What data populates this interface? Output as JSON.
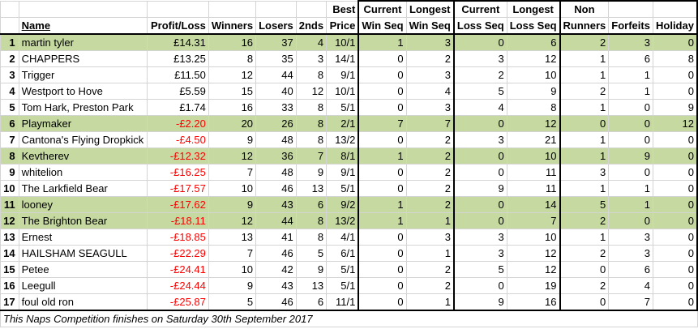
{
  "headers": {
    "name": "Name",
    "profit": "Profit/Loss",
    "winners": "Winners",
    "losers": "Losers",
    "seconds": "2nds",
    "best_price": [
      "Best",
      "Price"
    ],
    "cur_win": [
      "Current",
      "Win Seq"
    ],
    "long_win": [
      "Longest",
      "Win Seq"
    ],
    "cur_loss": [
      "Current",
      "Loss Seq"
    ],
    "long_loss": [
      "Longest",
      "Loss Seq"
    ],
    "non_runners": [
      "Non",
      "Runners"
    ],
    "forfeits": "Forfeits",
    "holiday": "Holiday"
  },
  "rows": [
    {
      "rank": "1",
      "name": "martin tyler",
      "profit": "£14.31",
      "winners": "16",
      "losers": "37",
      "seconds": "4",
      "best_price": "10/1",
      "cur_win": "1",
      "long_win": "3",
      "cur_loss": "0",
      "long_loss": "6",
      "non_runners": "2",
      "forfeits": "3",
      "holiday": "0",
      "highlight": true,
      "negative": false
    },
    {
      "rank": "2",
      "name": "CHAPPERS",
      "profit": "£13.25",
      "winners": "8",
      "losers": "35",
      "seconds": "3",
      "best_price": "14/1",
      "cur_win": "0",
      "long_win": "2",
      "cur_loss": "3",
      "long_loss": "12",
      "non_runners": "1",
      "forfeits": "6",
      "holiday": "8",
      "highlight": false,
      "negative": false
    },
    {
      "rank": "3",
      "name": "Trigger",
      "profit": "£11.50",
      "winners": "12",
      "losers": "44",
      "seconds": "8",
      "best_price": "9/1",
      "cur_win": "0",
      "long_win": "3",
      "cur_loss": "2",
      "long_loss": "10",
      "non_runners": "1",
      "forfeits": "1",
      "holiday": "0",
      "highlight": false,
      "negative": false
    },
    {
      "rank": "4",
      "name": "Westport to Hove",
      "profit": "£5.59",
      "winners": "15",
      "losers": "40",
      "seconds": "12",
      "best_price": "10/1",
      "cur_win": "0",
      "long_win": "4",
      "cur_loss": "5",
      "long_loss": "9",
      "non_runners": "2",
      "forfeits": "1",
      "holiday": "0",
      "highlight": false,
      "negative": false
    },
    {
      "rank": "5",
      "name": "Tom Hark, Preston Park",
      "profit": "£1.74",
      "winners": "16",
      "losers": "33",
      "seconds": "8",
      "best_price": "5/1",
      "cur_win": "0",
      "long_win": "3",
      "cur_loss": "4",
      "long_loss": "8",
      "non_runners": "1",
      "forfeits": "0",
      "holiday": "9",
      "highlight": false,
      "negative": false
    },
    {
      "rank": "6",
      "name": "Playmaker",
      "profit": "-£2.20",
      "winners": "20",
      "losers": "26",
      "seconds": "8",
      "best_price": "2/1",
      "cur_win": "7",
      "long_win": "7",
      "cur_loss": "0",
      "long_loss": "12",
      "non_runners": "0",
      "forfeits": "0",
      "holiday": "12",
      "highlight": true,
      "negative": true
    },
    {
      "rank": "7",
      "name": "Cantona's Flying Dropkick",
      "profit": "-£4.50",
      "winners": "9",
      "losers": "48",
      "seconds": "8",
      "best_price": "13/2",
      "cur_win": "0",
      "long_win": "2",
      "cur_loss": "3",
      "long_loss": "21",
      "non_runners": "1",
      "forfeits": "0",
      "holiday": "0",
      "highlight": false,
      "negative": true
    },
    {
      "rank": "8",
      "name": "Kevtherev",
      "profit": "-£12.32",
      "winners": "12",
      "losers": "36",
      "seconds": "7",
      "best_price": "8/1",
      "cur_win": "1",
      "long_win": "2",
      "cur_loss": "0",
      "long_loss": "10",
      "non_runners": "1",
      "forfeits": "9",
      "holiday": "0",
      "highlight": true,
      "negative": true
    },
    {
      "rank": "9",
      "name": "whitelion",
      "profit": "-£16.25",
      "winners": "7",
      "losers": "48",
      "seconds": "9",
      "best_price": "9/1",
      "cur_win": "0",
      "long_win": "2",
      "cur_loss": "0",
      "long_loss": "11",
      "non_runners": "3",
      "forfeits": "0",
      "holiday": "0",
      "highlight": false,
      "negative": true
    },
    {
      "rank": "10",
      "name": "The Larkfield Bear",
      "profit": "-£17.57",
      "winners": "10",
      "losers": "46",
      "seconds": "13",
      "best_price": "5/1",
      "cur_win": "0",
      "long_win": "2",
      "cur_loss": "9",
      "long_loss": "11",
      "non_runners": "1",
      "forfeits": "1",
      "holiday": "0",
      "highlight": false,
      "negative": true
    },
    {
      "rank": "11",
      "name": "looney",
      "profit": "-£17.62",
      "winners": "9",
      "losers": "43",
      "seconds": "6",
      "best_price": "9/2",
      "cur_win": "1",
      "long_win": "2",
      "cur_loss": "0",
      "long_loss": "14",
      "non_runners": "5",
      "forfeits": "1",
      "holiday": "0",
      "highlight": true,
      "negative": true
    },
    {
      "rank": "12",
      "name": "The Brighton Bear",
      "profit": "-£18.11",
      "winners": "12",
      "losers": "44",
      "seconds": "8",
      "best_price": "13/2",
      "cur_win": "1",
      "long_win": "1",
      "cur_loss": "0",
      "long_loss": "7",
      "non_runners": "2",
      "forfeits": "0",
      "holiday": "0",
      "highlight": true,
      "negative": true
    },
    {
      "rank": "13",
      "name": "Ernest",
      "profit": "-£18.85",
      "winners": "13",
      "losers": "41",
      "seconds": "8",
      "best_price": "4/1",
      "cur_win": "0",
      "long_win": "3",
      "cur_loss": "3",
      "long_loss": "10",
      "non_runners": "1",
      "forfeits": "3",
      "holiday": "0",
      "highlight": false,
      "negative": true
    },
    {
      "rank": "14",
      "name": "HAILSHAM SEAGULL",
      "profit": "-£22.29",
      "winners": "7",
      "losers": "46",
      "seconds": "5",
      "best_price": "6/1",
      "cur_win": "0",
      "long_win": "1",
      "cur_loss": "3",
      "long_loss": "12",
      "non_runners": "2",
      "forfeits": "3",
      "holiday": "0",
      "highlight": false,
      "negative": true
    },
    {
      "rank": "15",
      "name": "Petee",
      "profit": "-£24.41",
      "winners": "10",
      "losers": "42",
      "seconds": "9",
      "best_price": "5/1",
      "cur_win": "0",
      "long_win": "2",
      "cur_loss": "5",
      "long_loss": "12",
      "non_runners": "0",
      "forfeits": "6",
      "holiday": "0",
      "highlight": false,
      "negative": true
    },
    {
      "rank": "16",
      "name": "Leegull",
      "profit": "-£24.44",
      "winners": "9",
      "losers": "43",
      "seconds": "13",
      "best_price": "5/1",
      "cur_win": "0",
      "long_win": "2",
      "cur_loss": "0",
      "long_loss": "19",
      "non_runners": "2",
      "forfeits": "4",
      "holiday": "0",
      "highlight": false,
      "negative": true
    },
    {
      "rank": "17",
      "name": "foul old ron",
      "profit": "-£25.87",
      "winners": "5",
      "losers": "46",
      "seconds": "6",
      "best_price": "11/1",
      "cur_win": "0",
      "long_win": "1",
      "cur_loss": "9",
      "long_loss": "16",
      "non_runners": "0",
      "forfeits": "7",
      "holiday": "0",
      "highlight": false,
      "negative": true
    }
  ],
  "footer": "This Naps Competition finishes on Saturday 30th September 2017",
  "colors": {
    "highlight": "#c5d9a1",
    "negative": "#ff0000"
  }
}
